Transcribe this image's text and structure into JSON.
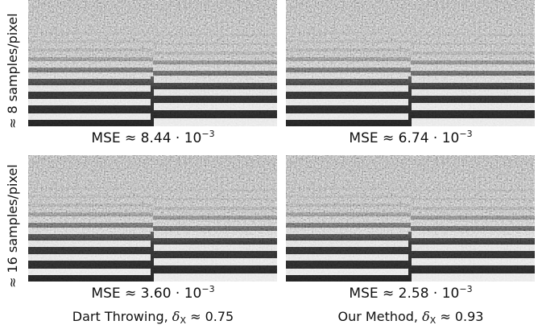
{
  "rows": [
    {
      "label": "≈ 8 samples/pixel",
      "panels": [
        {
          "mse": "MSE ≈ 8.44 · 10",
          "exponent": "−3"
        },
        {
          "mse": "MSE ≈ 6.74 · 10",
          "exponent": "−3"
        }
      ]
    },
    {
      "label": "≈ 16 samples/pixel",
      "panels": [
        {
          "mse": "MSE ≈ 3.60 · 10",
          "exponent": "−3"
        },
        {
          "mse": "MSE ≈ 2.58 · 10",
          "exponent": "−3"
        }
      ]
    }
  ],
  "columns": [
    {
      "caption": "Dart Throwing, ",
      "symbol": "δ",
      "subscript": "X",
      "suffix": " ≈ 0.75"
    },
    {
      "caption": "Our Method, ",
      "symbol": "δ",
      "subscript": "X",
      "suffix": " ≈ 0.93"
    }
  ]
}
